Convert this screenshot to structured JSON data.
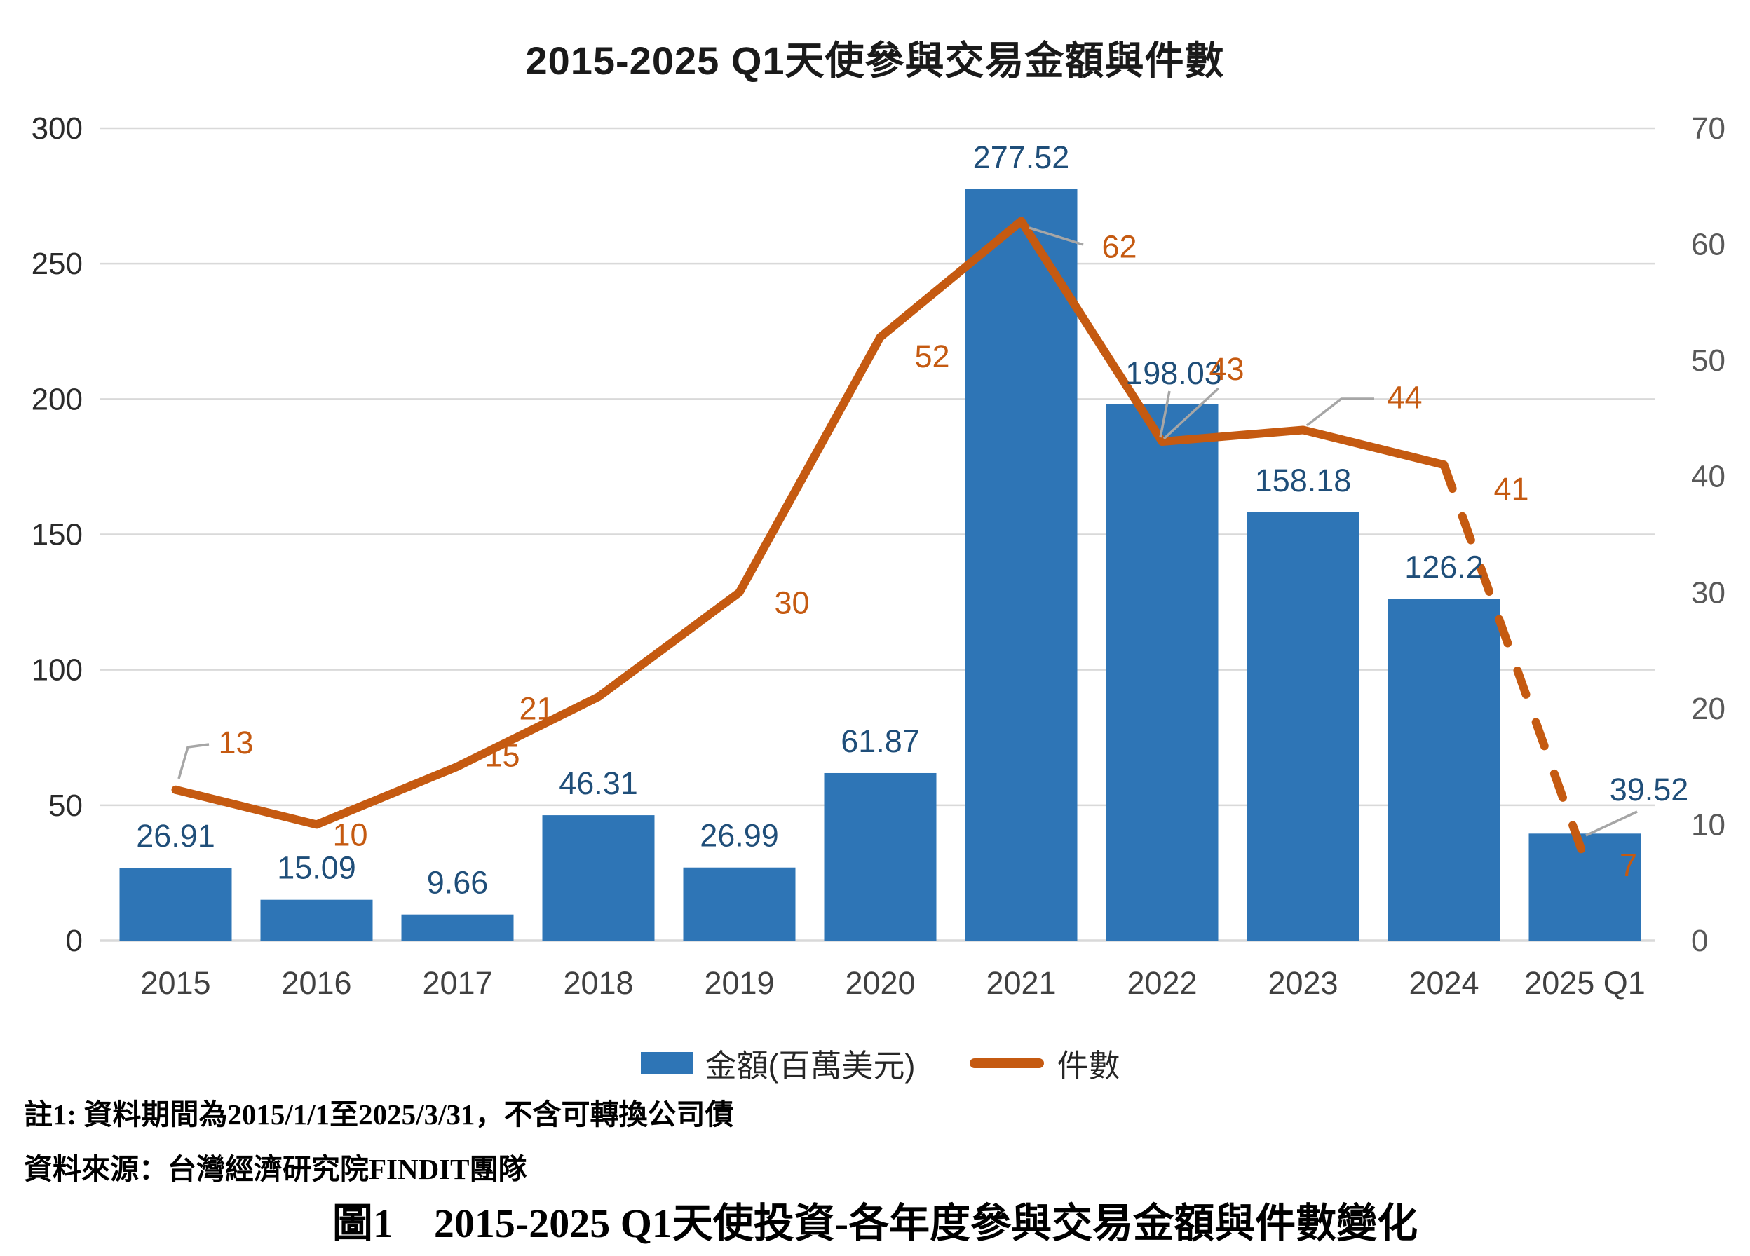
{
  "title": "2015-2025 Q1天使參與交易金額與件數",
  "legend": {
    "bar_label": "金額(百萬美元)",
    "line_label": "件數"
  },
  "notes": {
    "note1": "註1: 資料期間為2015/1/1至2025/3/31，不含可轉換公司債",
    "source": "資料來源：台灣經濟研究院FINDIT團隊",
    "caption": "圖1　2015-2025 Q1天使投資-各年度參與交易金額與件數變化"
  },
  "colors": {
    "bar": "#2E75B6",
    "line": "#C55A11",
    "bar_value_label": "#1F4E79",
    "line_value_label": "#C55A11",
    "left_tick": "#2b2b2b",
    "right_tick": "#595959",
    "category_tick": "#404040",
    "gridline": "#D9D9D9",
    "leader": "#A6A6A6"
  },
  "chart_data": {
    "type": "bar",
    "subtype": "combo bar+line, dual axis",
    "title": "2015-2025 Q1天使參與交易金額與件數",
    "categories": [
      "2015",
      "2016",
      "2017",
      "2018",
      "2019",
      "2020",
      "2021",
      "2022",
      "2023",
      "2024",
      "2025 Q1"
    ],
    "series": [
      {
        "name": "金額(百萬美元)",
        "type": "bar",
        "axis": "left",
        "values": [
          26.91,
          15.09,
          9.66,
          46.31,
          26.99,
          61.87,
          277.52,
          198.03,
          158.18,
          126.2,
          39.52
        ],
        "labels": [
          "26.91",
          "15.09",
          "9.66",
          "46.31",
          "26.99",
          "61.87",
          "277.52",
          "198.03",
          "158.18",
          "126.2",
          "39.52"
        ]
      },
      {
        "name": "件數",
        "type": "line",
        "axis": "right",
        "values": [
          13,
          10,
          15,
          21,
          30,
          52,
          62,
          43,
          44,
          41,
          7
        ],
        "labels": [
          "13",
          "10",
          "15",
          "21",
          "30",
          "52",
          "62",
          "43",
          "44",
          "41",
          "7"
        ],
        "dashed_segment_from_index": 9
      }
    ],
    "left_axis": {
      "min": 0,
      "max": 300,
      "step": 50,
      "ticks": [
        "0",
        "50",
        "100",
        "150",
        "200",
        "250",
        "300"
      ]
    },
    "right_axis": {
      "min": 0,
      "max": 70,
      "step": 10,
      "ticks": [
        "0",
        "10",
        "20",
        "30",
        "40",
        "50",
        "60",
        "70"
      ]
    },
    "grid": true,
    "legend_position": "bottom",
    "leader_line_annotated_points": [
      "13",
      "62",
      "198.03",
      "43",
      "44",
      "39.52"
    ]
  }
}
